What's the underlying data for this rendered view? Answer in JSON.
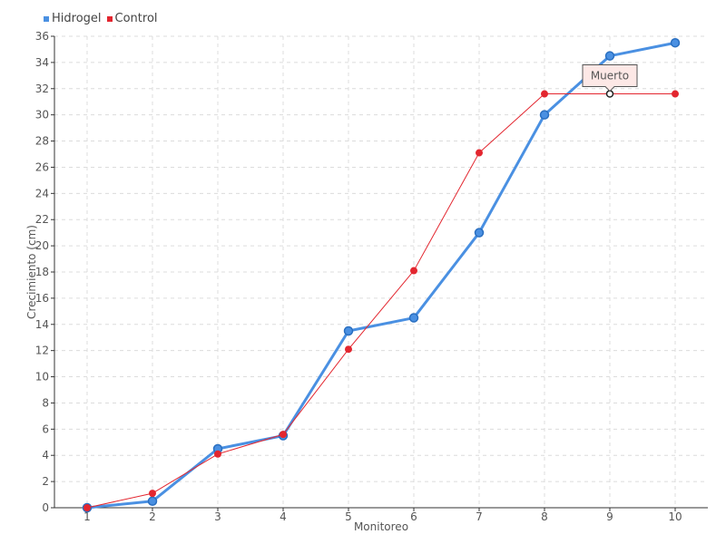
{
  "chart_data": {
    "type": "line",
    "xlabel": "Monitoreo",
    "ylabel": "Crecimiento (cm)",
    "x": [
      1,
      2,
      3,
      4,
      5,
      6,
      7,
      8,
      9,
      10
    ],
    "ylim": [
      0,
      36
    ],
    "ytick_step": 2,
    "grid": true,
    "legend_position": "top-left",
    "series": [
      {
        "name": "Hidrogel",
        "color": "#4a90e2",
        "values": [
          0,
          0.5,
          4.5,
          5.5,
          13.5,
          14.5,
          21,
          30,
          34.5,
          35.5
        ]
      },
      {
        "name": "Control",
        "color": "#e3262f",
        "values": [
          0,
          1.1,
          4.1,
          5.6,
          12.1,
          18.1,
          27.1,
          31.6,
          31.6,
          31.6
        ]
      }
    ],
    "annotations": [
      {
        "text": "Muerto",
        "series": "Control",
        "x": 9,
        "y": 31.6
      }
    ]
  }
}
